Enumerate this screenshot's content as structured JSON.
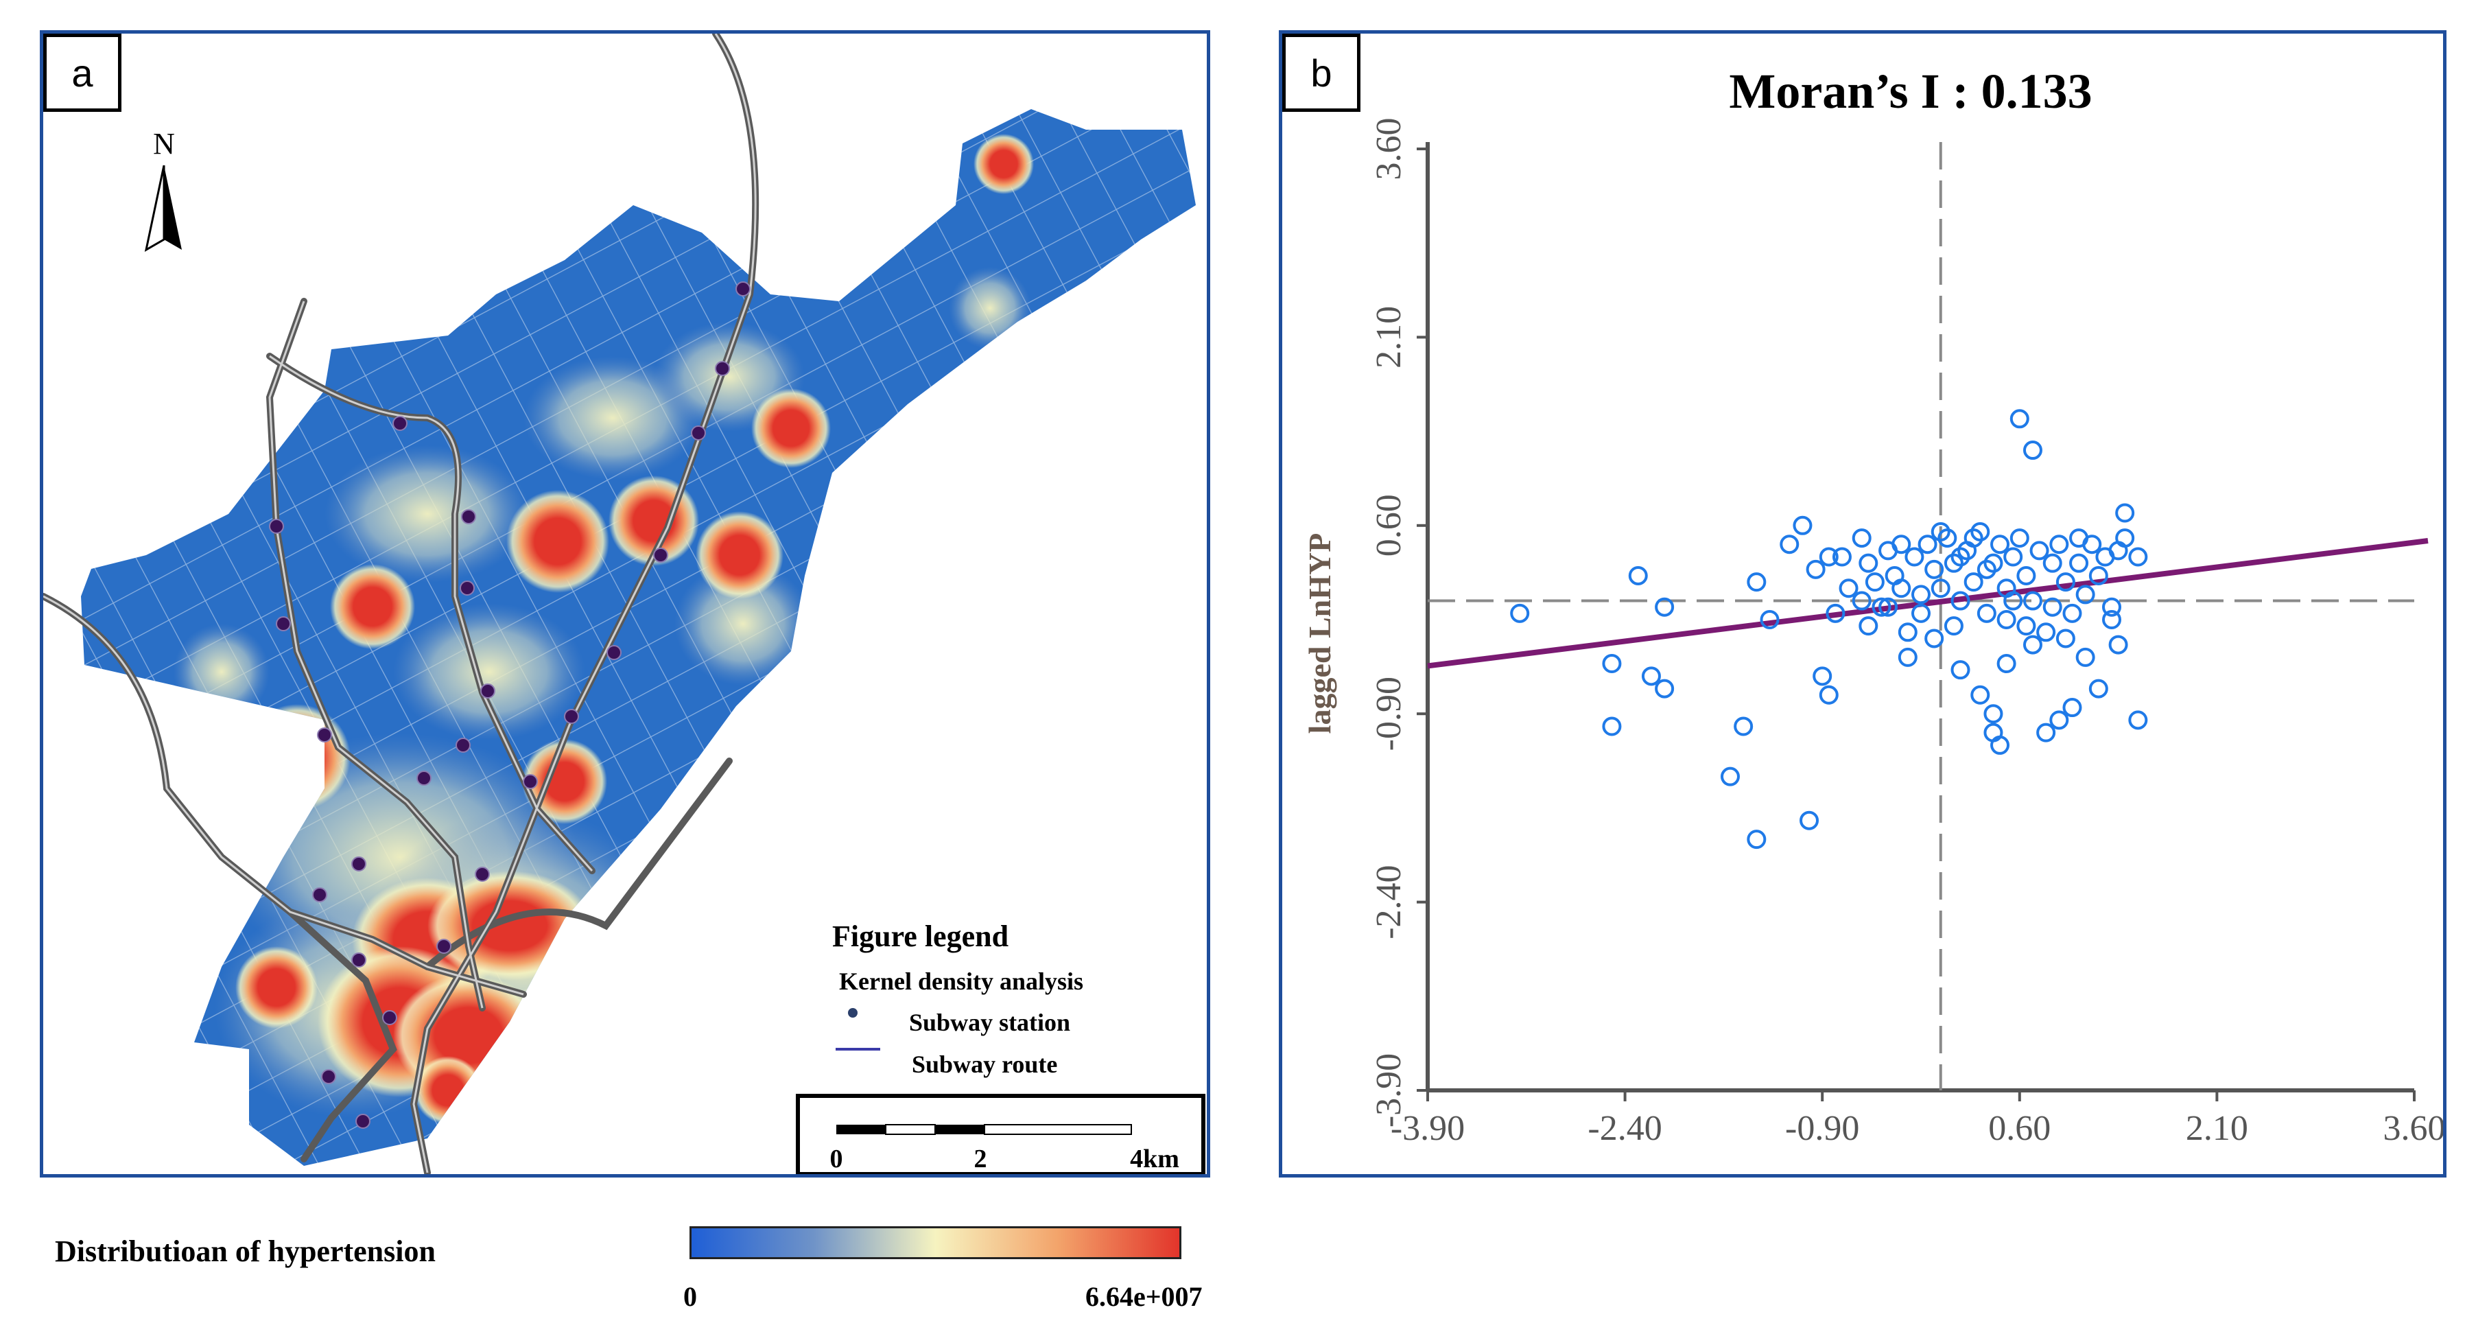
{
  "panel_a": {
    "label": "a",
    "north": "N",
    "legend": {
      "title": "Figure legend",
      "subtitle": "Kernel density analysis",
      "station_label": "Subway station",
      "route_label": "Subway route"
    },
    "scale_bar": {
      "ticks": [
        "0",
        "2",
        "4km"
      ]
    },
    "colors": {
      "low": "#1f5fd6",
      "mid": "#f6f3c0",
      "high": "#e2352b",
      "route": "#5a5a5a",
      "station": "#3a1257"
    }
  },
  "panel_b": {
    "label": "b",
    "chart_data": {
      "type": "scatter",
      "title": "Moran’s I :  0.133",
      "xlabel": "",
      "ylabel": "lagged LnHYP",
      "xlim": [
        -3.9,
        3.6
      ],
      "ylim": [
        -3.9,
        3.6
      ],
      "x_ticks": [
        "-3.90",
        "-2.40",
        "-0.90",
        "0.60",
        "2.10",
        "3.60"
      ],
      "y_ticks": [
        "-3.90",
        "-2.40",
        "-0.90",
        "0.60",
        "2.10",
        "3.60"
      ],
      "morans_i": 0.133,
      "mean_x": 0.0,
      "mean_y": 0.0,
      "points": [
        [
          -3.2,
          -0.1
        ],
        [
          -2.5,
          -0.5
        ],
        [
          -2.5,
          -1.0
        ],
        [
          -2.3,
          0.2
        ],
        [
          -2.2,
          -0.6
        ],
        [
          -2.1,
          -0.7
        ],
        [
          -2.1,
          -0.05
        ],
        [
          -1.6,
          -1.4
        ],
        [
          -1.5,
          -1.0
        ],
        [
          -1.4,
          0.15
        ],
        [
          -1.4,
          -1.9
        ],
        [
          -1.3,
          -0.15
        ],
        [
          -1.15,
          0.45
        ],
        [
          -1.05,
          0.6
        ],
        [
          -0.95,
          0.25
        ],
        [
          -0.9,
          -0.6
        ],
        [
          -0.85,
          -0.75
        ],
        [
          -0.8,
          -0.1
        ],
        [
          -1.0,
          -1.75
        ],
        [
          -0.7,
          0.1
        ],
        [
          -0.75,
          0.35
        ],
        [
          -0.6,
          0.0
        ],
        [
          -0.55,
          0.3
        ],
        [
          -0.5,
          0.15
        ],
        [
          -0.45,
          -0.05
        ],
        [
          -0.4,
          0.4
        ],
        [
          -0.35,
          0.2
        ],
        [
          -0.3,
          0.1
        ],
        [
          -0.25,
          -0.25
        ],
        [
          -0.2,
          0.35
        ],
        [
          -0.15,
          0.05
        ],
        [
          -0.1,
          0.45
        ],
        [
          -0.05,
          0.25
        ],
        [
          -0.05,
          -0.3
        ],
        [
          0.0,
          0.1
        ],
        [
          0.05,
          0.5
        ],
        [
          0.1,
          0.3
        ],
        [
          0.15,
          0.0
        ],
        [
          0.2,
          0.4
        ],
        [
          0.25,
          0.15
        ],
        [
          0.3,
          0.55
        ],
        [
          0.35,
          -0.1
        ],
        [
          0.4,
          0.3
        ],
        [
          0.45,
          0.45
        ],
        [
          0.5,
          0.1
        ],
        [
          0.5,
          -0.15
        ],
        [
          0.55,
          0.35
        ],
        [
          0.6,
          0.5
        ],
        [
          0.65,
          0.2
        ],
        [
          0.7,
          0.0
        ],
        [
          0.75,
          0.4
        ],
        [
          0.8,
          -0.25
        ],
        [
          0.85,
          0.3
        ],
        [
          0.9,
          0.45
        ],
        [
          0.95,
          0.15
        ],
        [
          1.0,
          -0.1
        ],
        [
          1.05,
          0.3
        ],
        [
          1.1,
          0.05
        ],
        [
          1.15,
          0.45
        ],
        [
          1.2,
          0.2
        ],
        [
          1.3,
          -0.05
        ],
        [
          1.35,
          0.4
        ],
        [
          1.4,
          0.5
        ],
        [
          0.3,
          -0.75
        ],
        [
          0.4,
          -0.9
        ],
        [
          0.4,
          -1.05
        ],
        [
          0.45,
          -1.15
        ],
        [
          -0.25,
          -0.45
        ],
        [
          0.15,
          -0.55
        ],
        [
          0.5,
          -0.5
        ],
        [
          0.7,
          -0.35
        ],
        [
          0.8,
          -1.05
        ],
        [
          0.9,
          -0.95
        ],
        [
          1.1,
          -0.45
        ],
        [
          1.35,
          -0.35
        ],
        [
          1.3,
          -0.15
        ],
        [
          1.2,
          -0.7
        ],
        [
          1.0,
          -0.85
        ],
        [
          1.5,
          -0.95
        ],
        [
          1.5,
          0.35
        ],
        [
          1.4,
          0.7
        ],
        [
          0.6,
          1.45
        ],
        [
          0.7,
          1.2
        ],
        [
          -0.6,
          0.5
        ],
        [
          -0.55,
          -0.2
        ],
        [
          -0.3,
          0.45
        ],
        [
          0.0,
          0.55
        ],
        [
          0.1,
          -0.2
        ],
        [
          0.25,
          0.5
        ],
        [
          0.55,
          0.0
        ],
        [
          0.85,
          -0.05
        ],
        [
          1.05,
          0.5
        ],
        [
          -0.85,
          0.35
        ],
        [
          -0.15,
          -0.1
        ],
        [
          0.35,
          0.25
        ],
        [
          0.65,
          -0.2
        ],
        [
          1.25,
          0.35
        ],
        [
          -0.4,
          -0.05
        ],
        [
          0.15,
          0.35
        ],
        [
          0.95,
          -0.3
        ]
      ],
      "regression": {
        "slope": 0.133,
        "intercept": 0.0
      },
      "colors": {
        "points": "#1f7ae8",
        "line": "#7a1a72",
        "axes": "#555555"
      }
    }
  },
  "bottom": {
    "title": "Distributioan of hypertension",
    "min_label": "0",
    "max_label": "6.64e+007"
  }
}
